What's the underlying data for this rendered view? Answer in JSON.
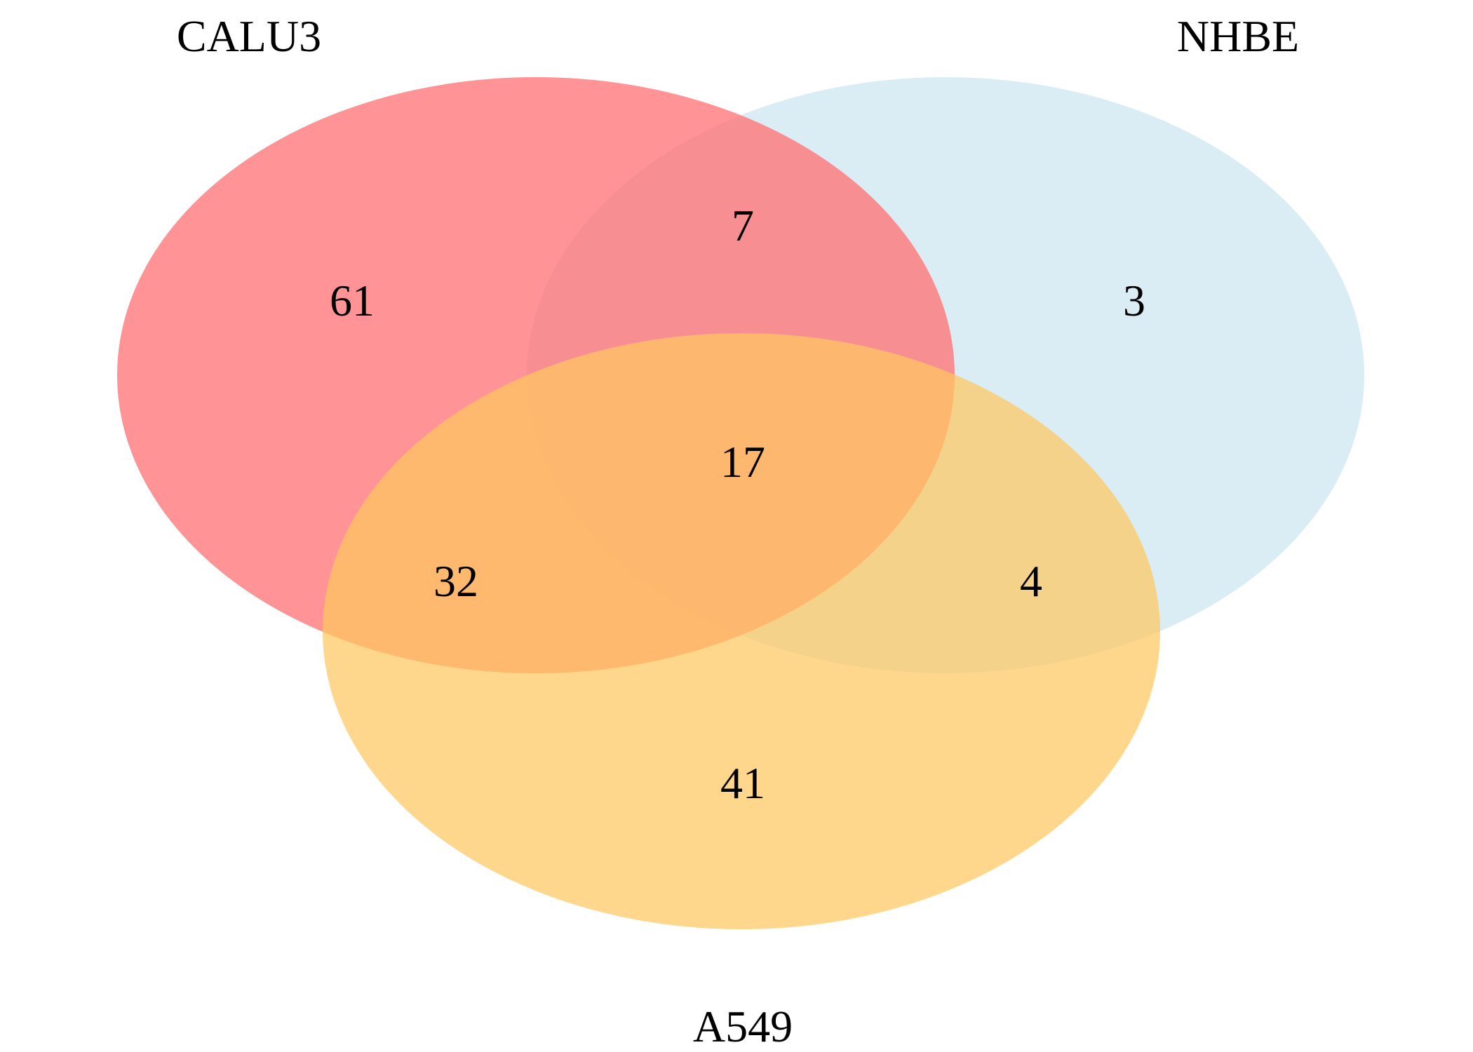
{
  "diagram": {
    "type": "venn",
    "sets": [
      {
        "id": "calu3",
        "label": "CALU3",
        "color": "#ff6f72"
      },
      {
        "id": "nhbe",
        "label": "NHBE",
        "color": "#cbe4f0"
      },
      {
        "id": "a549",
        "label": "A549",
        "color": "#ffc760"
      }
    ],
    "regions": {
      "calu3_only": "61",
      "nhbe_only": "3",
      "a549_only": "41",
      "calu3_nhbe": "7",
      "calu3_a549": "32",
      "nhbe_a549": "4",
      "all_three": "17"
    }
  }
}
